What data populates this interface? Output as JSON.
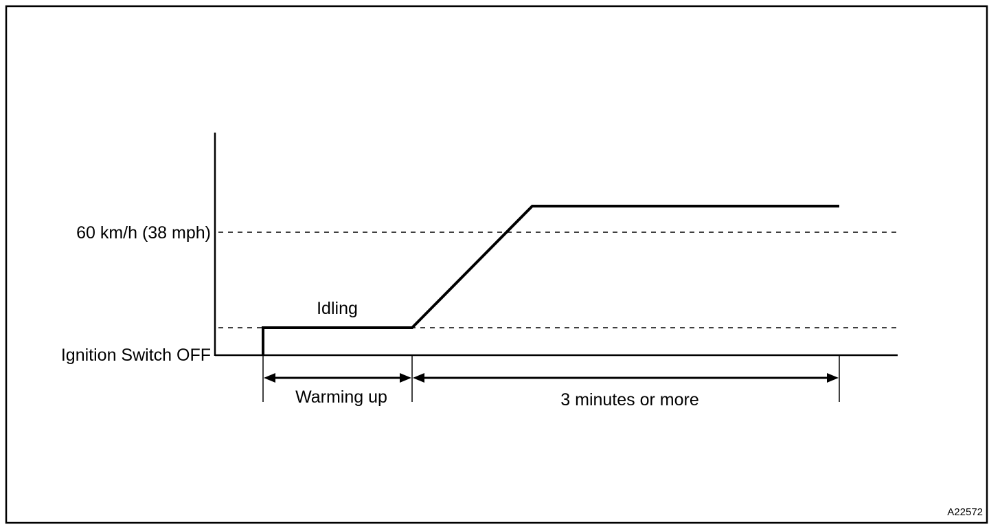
{
  "colors": {
    "ink": "#000000",
    "paper": "#ffffff"
  },
  "labels": {
    "speed_threshold": "60 km/h (38 mph)",
    "ignition_off": "Ignition Switch OFF",
    "idling": "Idling",
    "warming_up": "Warming up",
    "duration": "3 minutes or more"
  },
  "figure_code": "A22572"
}
